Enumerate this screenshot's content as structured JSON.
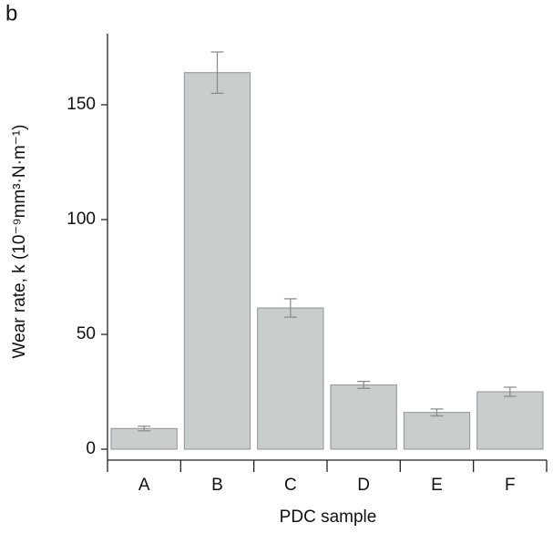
{
  "chart_data": {
    "type": "bar",
    "panel_label": "b",
    "x_label": "PDC sample",
    "y_label": "Wear rate, k  (10⁻⁹mm³·N·m⁻¹)",
    "categories": [
      "A",
      "B",
      "C",
      "D",
      "E",
      "F"
    ],
    "values": [
      9,
      164,
      61.5,
      28,
      16,
      25
    ],
    "errors": [
      1,
      9,
      4,
      1.5,
      1.5,
      2
    ],
    "color": "#c9cdcd",
    "error_color": "#888888",
    "ylim": [
      0,
      180
    ],
    "yticks": [
      0,
      50,
      100,
      150
    ]
  }
}
